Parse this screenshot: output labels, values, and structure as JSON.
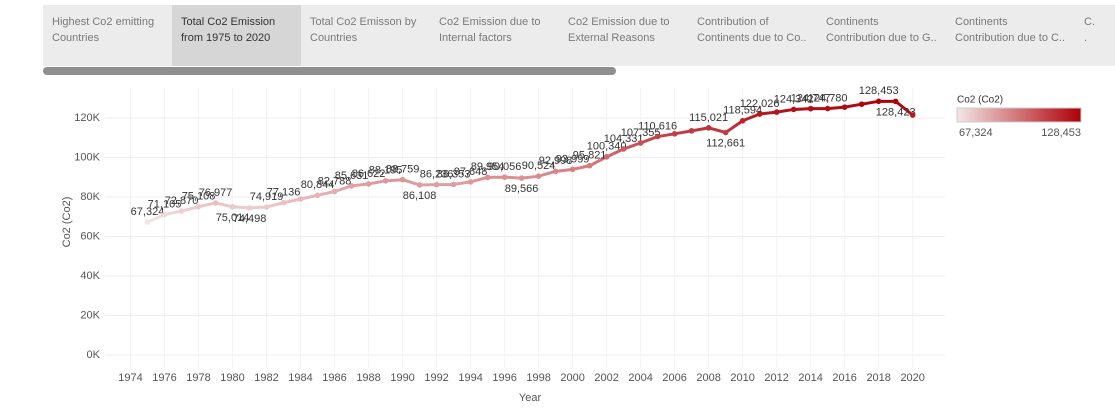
{
  "tabs": [
    {
      "label": "Highest Co2 emitting\nCountries"
    },
    {
      "label": "Total Co2 Emission\nfrom 1975 to 2020",
      "active": true
    },
    {
      "label": "Total Co2 Emisson by\nCountries"
    },
    {
      "label": "Co2 Emission due to\nInternal factors"
    },
    {
      "label": "Co2 Emission due to\nExternal Reasons"
    },
    {
      "label": "Contribution of\nContinents due to Co.."
    },
    {
      "label": "Continents\nContribution due to G.."
    },
    {
      "label": "Continents\nContribution due to C.."
    },
    {
      "label": "C.\n."
    }
  ],
  "chart_data": {
    "type": "line",
    "x_label": "Year",
    "y_label": "Co2 (Co2)",
    "x": [
      1975,
      1976,
      1977,
      1978,
      1979,
      1980,
      1981,
      1982,
      1983,
      1984,
      1985,
      1986,
      1987,
      1988,
      1989,
      1990,
      1991,
      1992,
      1993,
      1994,
      1995,
      1996,
      1997,
      1998,
      1999,
      2000,
      2001,
      2002,
      2003,
      2004,
      2005,
      2006,
      2007,
      2008,
      2009,
      2010,
      2011,
      2012,
      2013,
      2014,
      2015,
      2016,
      2017,
      2018,
      2019,
      2020
    ],
    "series": [
      {
        "name": "Co2 (Co2)",
        "values": [
          67324,
          71105,
          72870,
          75108,
          76977,
          75014,
          74498,
          74919,
          77136,
          79000,
          80844,
          82788,
          85631,
          86622,
          88195,
          88759,
          86108,
          86236,
          86353,
          87648,
          89954,
          90056,
          89566,
          90524,
          92998,
          93999,
          95821,
          100340,
          104331,
          107355,
          110616,
          112000,
          113500,
          115021,
          112661,
          118594,
          122026,
          123000,
          124342,
          124747,
          124780,
          125500,
          127000,
          128453,
          128423,
          121500
        ],
        "value_labels": [
          "67,324",
          "71,105",
          "72,870",
          "75,108",
          "76,977",
          "75,014",
          "74,498",
          "74,919",
          "77,136",
          null,
          "80,844",
          "82,788",
          "85,631",
          "86,622",
          "88,195",
          "88,759",
          "86,108",
          "86,236",
          "86,353",
          "87,648",
          "89,954",
          "90,056",
          "89,566",
          "90,524",
          "92,998",
          "93,999",
          "95,821",
          "100,340",
          "104,331",
          "107,355",
          "110,616",
          null,
          null,
          "115,021",
          "112,661",
          "118,594",
          "122,026",
          null,
          "124,342",
          "124,747",
          "124,780",
          null,
          null,
          "128,453",
          "128,423",
          null
        ]
      }
    ],
    "xlim": [
      1972.5,
      2021.9
    ],
    "ylim": [
      -6600,
      135200
    ],
    "xticks": [
      1974,
      1976,
      1978,
      1980,
      1982,
      1984,
      1986,
      1988,
      1990,
      1992,
      1994,
      1996,
      1998,
      2000,
      2002,
      2004,
      2006,
      2008,
      2010,
      2012,
      2014,
      2016,
      2018,
      2020
    ],
    "yticks": [
      {
        "value": 0,
        "label": "0K"
      },
      {
        "value": 20000,
        "label": "20K"
      },
      {
        "value": 40000,
        "label": "40K"
      },
      {
        "value": 60000,
        "label": "60K"
      },
      {
        "value": 80000,
        "label": "80K"
      },
      {
        "value": 100000,
        "label": "100K"
      },
      {
        "value": 120000,
        "label": "120K"
      }
    ],
    "grid": true,
    "legend": {
      "title": "Co2 (Co2)",
      "position": "right",
      "min": 67324,
      "max": 128453,
      "min_label": "67,324",
      "max_label": "128,453",
      "color_low": "#f3e6e6",
      "color_high": "#ae0008"
    }
  }
}
